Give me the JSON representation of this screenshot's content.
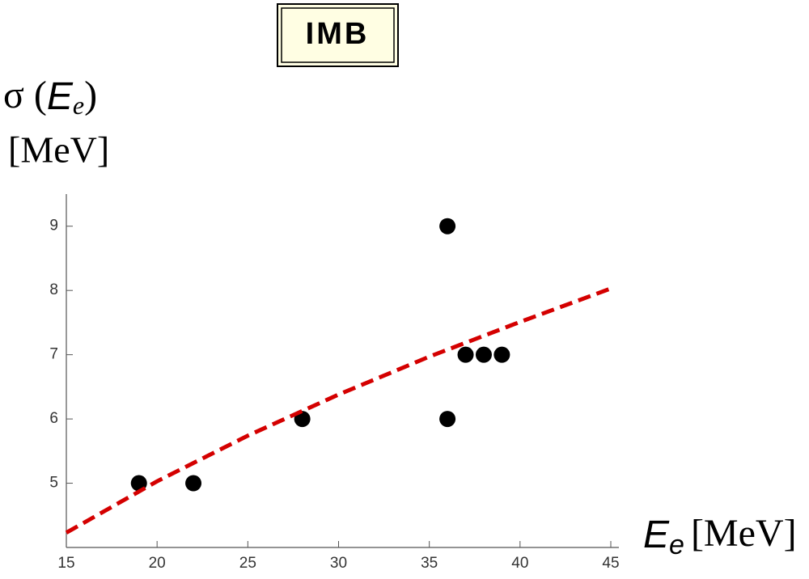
{
  "chart_data": {
    "type": "scatter",
    "title": "IMB",
    "y_label": {
      "text": "σ  (",
      "var": "E",
      "sub": "e",
      "close": ")",
      "unit": "[MeV]"
    },
    "x_label": {
      "var": "E",
      "sub": "e",
      "unit": "[MeV]"
    },
    "xlim": [
      15,
      45
    ],
    "ylim": [
      4,
      9.5
    ],
    "xticks": [
      15,
      20,
      25,
      30,
      35,
      40,
      45
    ],
    "yticks": [
      5,
      6,
      7,
      8,
      9
    ],
    "series": [
      {
        "x": [
          19,
          22,
          28,
          36,
          36,
          37,
          38,
          39
        ],
        "values": [
          5,
          5,
          6,
          9,
          6,
          7,
          7,
          7
        ],
        "color": "#000000"
      },
      {
        "kind": "line",
        "dashed": true,
        "color": "#d40000",
        "x": [
          15,
          20,
          25,
          30,
          35,
          40,
          45
        ],
        "values": [
          4.23,
          5.03,
          5.74,
          6.38,
          6.97,
          7.51,
          8.03
        ]
      }
    ]
  }
}
